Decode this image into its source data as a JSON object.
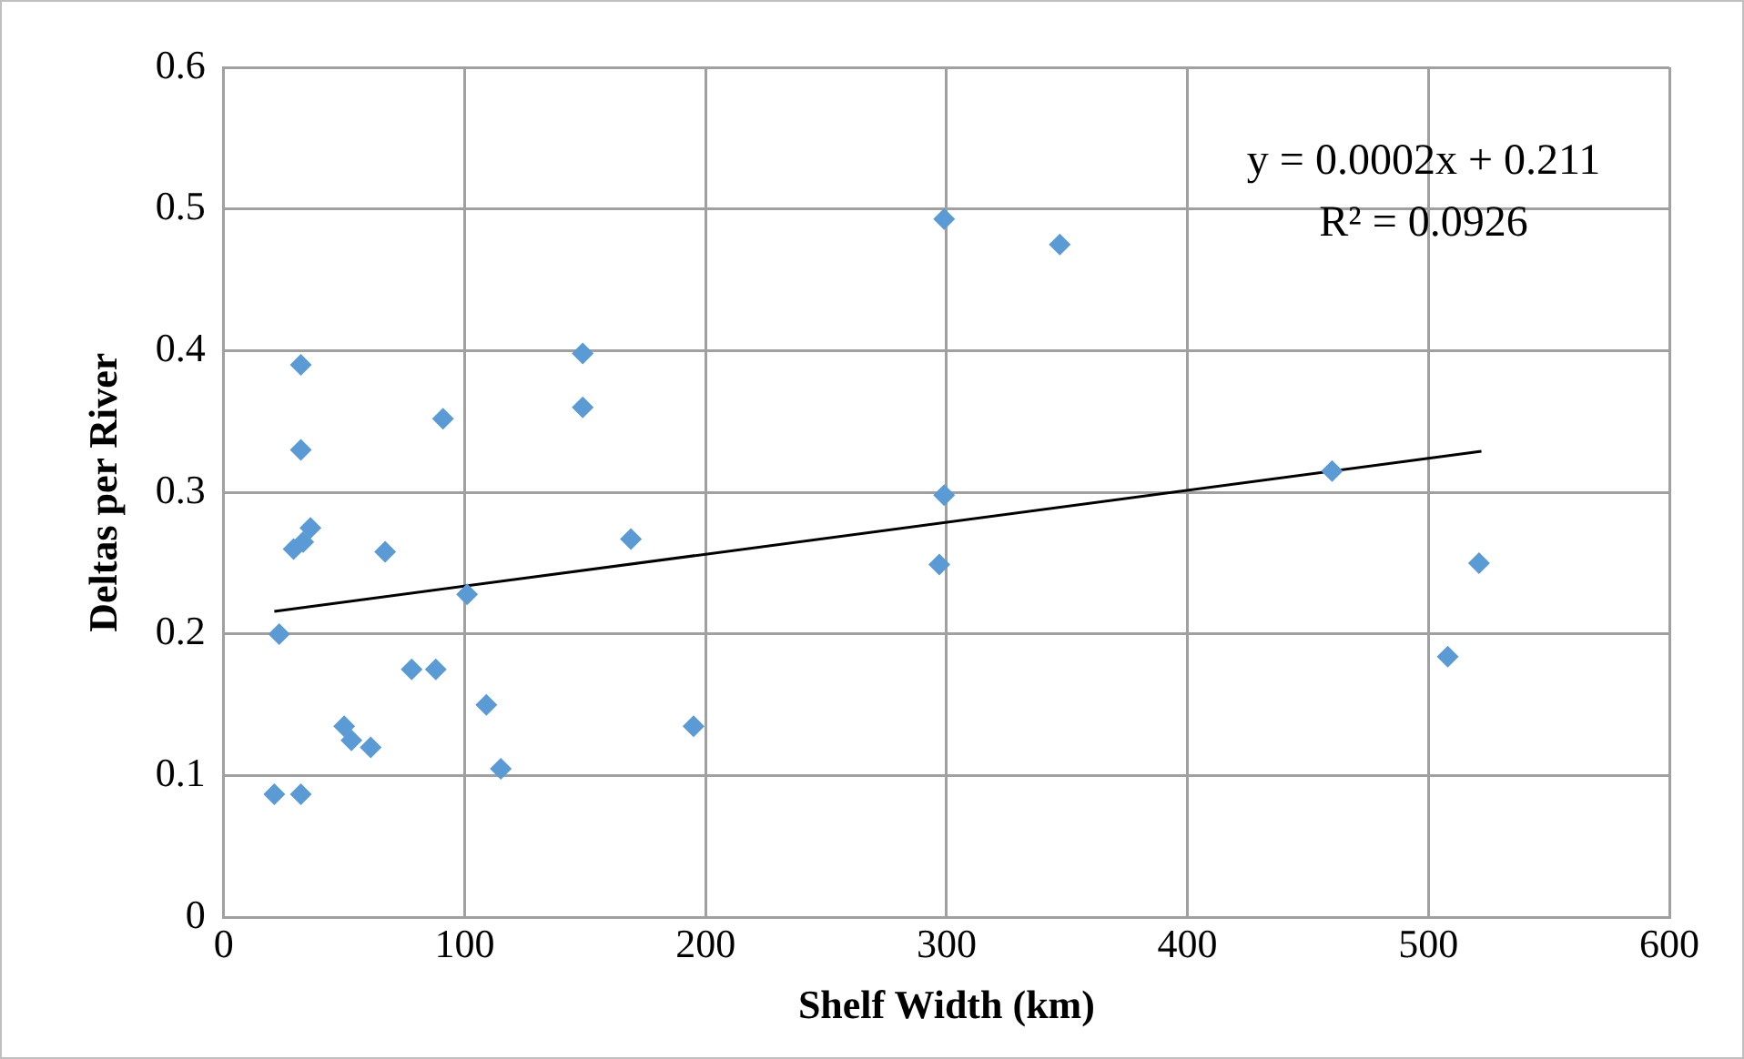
{
  "chart_data": {
    "type": "scatter",
    "xlabel": "Shelf Width (km)",
    "ylabel": "Deltas per River",
    "series": [
      {
        "color": "#5b9bd5",
        "marker": "diamond",
        "x": [
          21,
          32,
          23,
          32,
          32,
          29,
          33,
          36,
          50,
          53,
          61,
          67,
          78,
          88,
          91,
          101,
          109,
          115,
          149,
          149,
          169,
          195,
          299,
          297,
          299,
          347,
          460,
          508,
          521
        ],
        "values": [
          0.087,
          0.087,
          0.2,
          0.39,
          0.33,
          0.26,
          0.265,
          0.275,
          0.135,
          0.125,
          0.12,
          0.258,
          0.175,
          0.175,
          0.352,
          0.228,
          0.15,
          0.105,
          0.398,
          0.36,
          0.267,
          0.135,
          0.493,
          0.249,
          0.298,
          0.475,
          0.315,
          0.184,
          0.25
        ]
      },
      {
        "type": "line",
        "color": "#000000",
        "marker": "none",
        "x": [
          21,
          522
        ],
        "values": [
          0.216,
          0.329
        ]
      }
    ],
    "xlim": [
      0,
      600
    ],
    "xticks": [
      0,
      100,
      200,
      300,
      400,
      500,
      600
    ],
    "ylim": [
      0,
      0.6
    ],
    "yticks": [
      0,
      0.1,
      0.2,
      0.3,
      0.4,
      0.5,
      0.6
    ],
    "grid": true,
    "legend": false,
    "annotations": [
      "y = 0.0002x + 0.211",
      "R² = 0.0926"
    ]
  }
}
